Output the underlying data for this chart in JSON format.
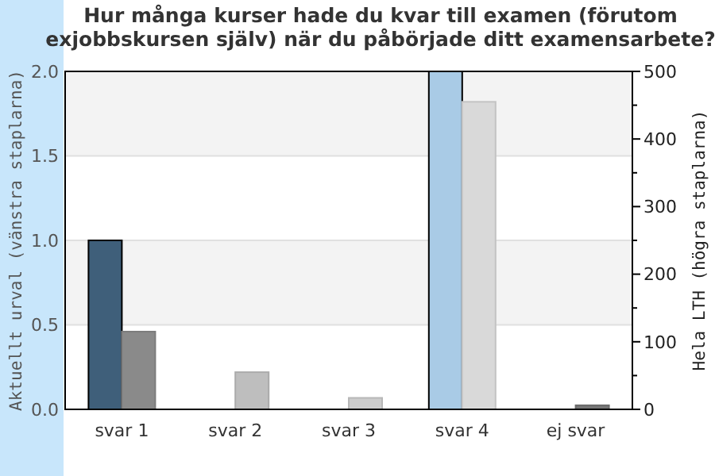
{
  "chart_data": {
    "type": "bar",
    "title": "Hur många kurser hade du kvar till examen (förutom exjobbskursen själv) när du påbörjade ditt examensarbete?",
    "categories": [
      "svar 1",
      "svar 2",
      "svar 3",
      "svar 4",
      "ej svar"
    ],
    "series": [
      {
        "colors": [
          "#3f5f7a",
          "#3f5f7a",
          "#3f5f7a",
          "#a9cbe6",
          "#3f5f7a"
        ],
        "values": [
          1,
          0,
          0,
          2,
          0
        ]
      },
      {
        "axis": "y2",
        "colors": [
          "#8a8a8a",
          "#bebebe",
          "#cccccc",
          "#d9d9d9",
          "#777777"
        ],
        "values": [
          115,
          55,
          17,
          455,
          6
        ]
      }
    ],
    "ylabel": "Aktuellt urval (vänstra staplarna)",
    "y2label": "Hela LTH (högra staplarna)",
    "ylim": [
      0,
      2
    ],
    "yticks": [
      {
        "value": 0,
        "label": "0.0"
      },
      {
        "value": 0.5,
        "label": "0.5"
      },
      {
        "value": 1,
        "label": "1.0"
      },
      {
        "value": 1.5,
        "label": "1.5"
      },
      {
        "value": 2,
        "label": "2.0"
      }
    ],
    "y2lim": [
      0,
      500
    ],
    "y2ticks": [
      0,
      {
        "value": 50,
        "label": null
      },
      100,
      {
        "value": 150,
        "label": null
      },
      200,
      {
        "value": 250,
        "label": null
      },
      300,
      {
        "value": 350,
        "label": null
      },
      400,
      {
        "value": 450,
        "label": null
      },
      500
    ],
    "grid": "y"
  }
}
